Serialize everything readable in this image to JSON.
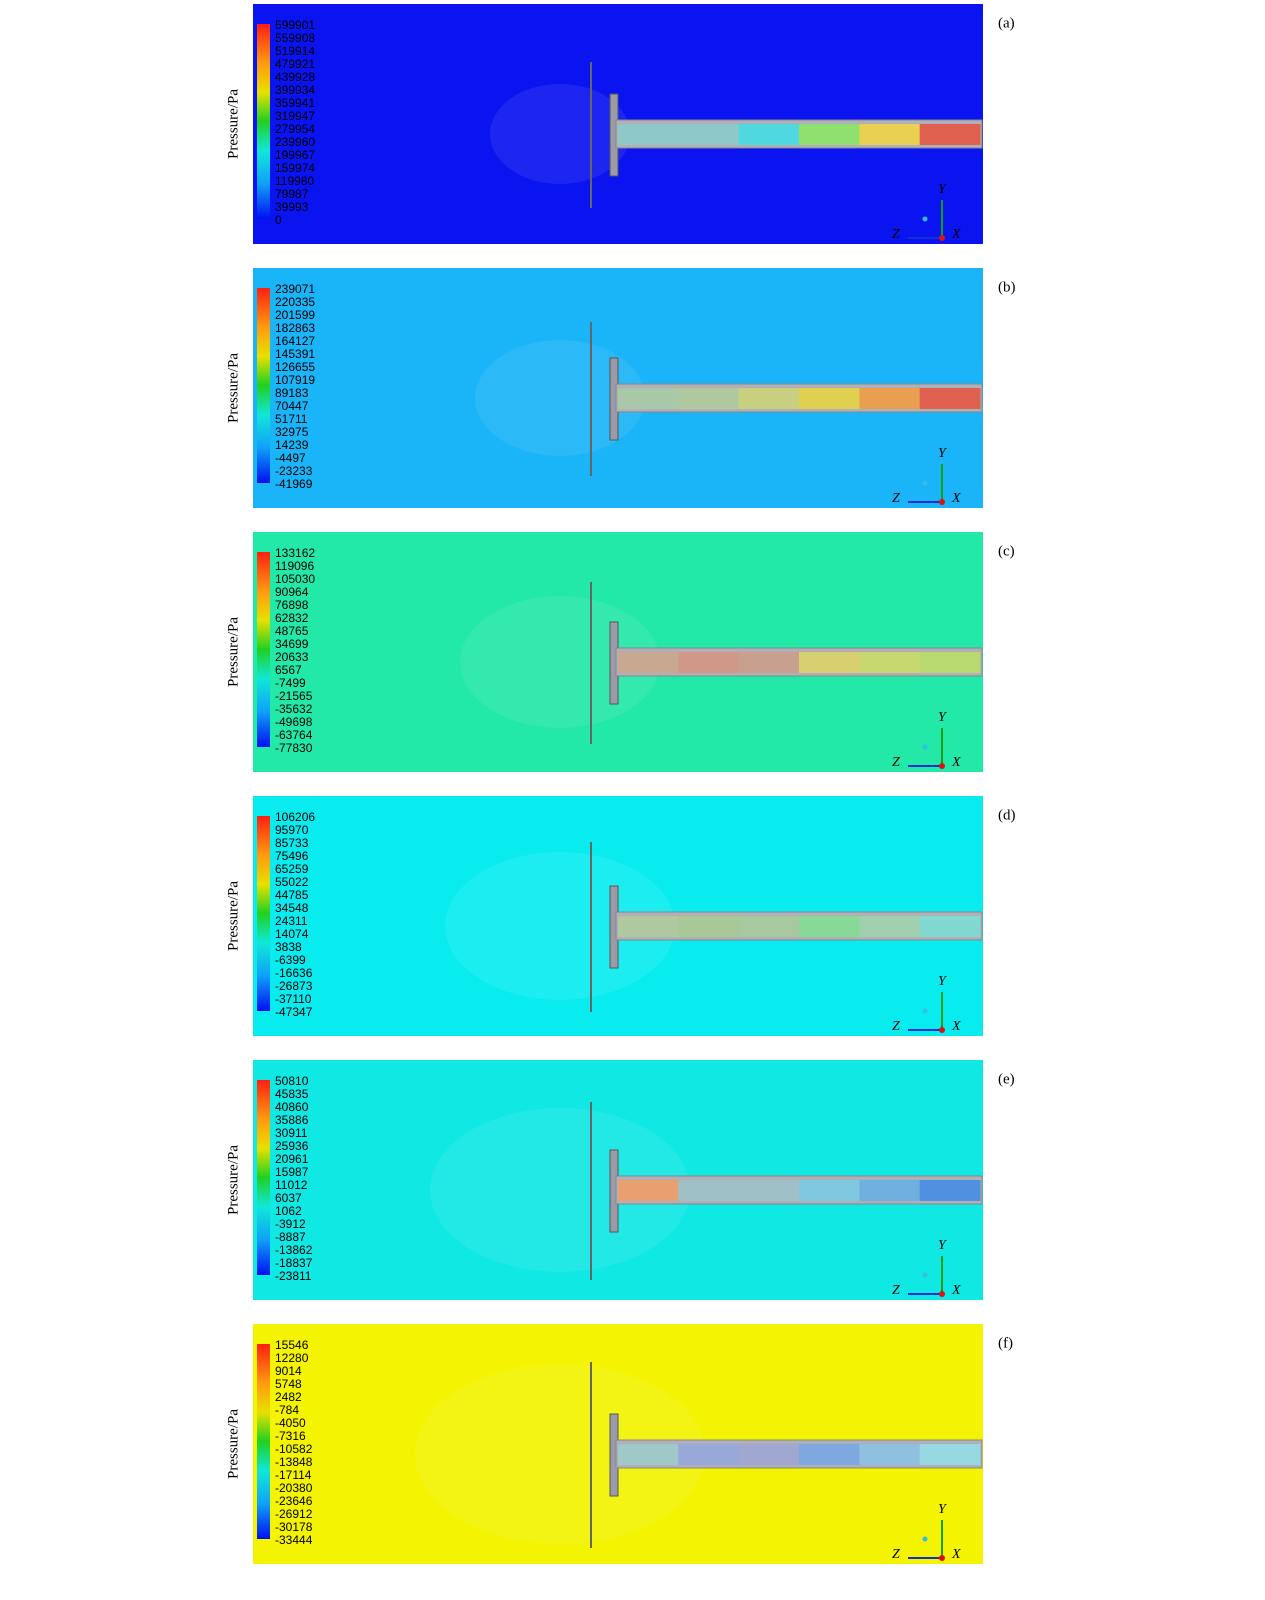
{
  "panels": [
    {
      "label": "(a)",
      "axis_label": "Pressure/Pa",
      "background": "#0a14f0",
      "pipe_colors": [
        "#8ec8c8",
        "#8ec8c8",
        "#50d8e0",
        "#90e070",
        "#e8d050",
        "#e06050"
      ],
      "legend": [
        599901,
        559908,
        519914,
        479921,
        439928,
        399934,
        359941,
        319947,
        279954,
        239960,
        199967,
        159974,
        119980,
        79987,
        39993,
        0
      ],
      "triad": {
        "y": "Y",
        "z": "Z",
        "x": "X"
      }
    },
    {
      "label": "(b)",
      "axis_label": "Pressure/Pa",
      "background": "#1ab4f8",
      "pipe_colors": [
        "#a8c8a8",
        "#b0c8a0",
        "#c8d080",
        "#e0d050",
        "#e8a050",
        "#e06050"
      ],
      "legend": [
        239071,
        220335,
        201599,
        182863,
        164127,
        145391,
        126655,
        107919,
        89183,
        70447,
        51711,
        32975,
        14239,
        -4497,
        -23233,
        -41969
      ],
      "triad": {
        "y": "Y",
        "z": "Z",
        "x": "X"
      }
    },
    {
      "label": "(c)",
      "axis_label": "Pressure/Pa",
      "background": "#22e8a8",
      "pipe_colors": [
        "#c8a890",
        "#d09888",
        "#c8a090",
        "#d8d070",
        "#c8d870",
        "#b8d870"
      ],
      "legend": [
        133162,
        119096,
        105030,
        90964,
        76898,
        62832,
        48765,
        34699,
        20633,
        6567,
        -7499,
        -21565,
        -35632,
        -49698,
        -63764,
        -77830
      ],
      "triad": {
        "y": "Y",
        "z": "Z",
        "x": "X"
      }
    },
    {
      "label": "(d)",
      "axis_label": "Pressure/Pa",
      "background": "#08ecf0",
      "pipe_colors": [
        "#b0c8a0",
        "#a8c898",
        "#a8c8a0",
        "#88d898",
        "#a0d0b0",
        "#80d8d0"
      ],
      "legend": [
        106206,
        95970,
        85733,
        75496,
        65259,
        55022,
        44785,
        34548,
        24311,
        14074,
        3838,
        -6399,
        -16636,
        -26873,
        -37110,
        -47347
      ],
      "triad": {
        "y": "Y",
        "z": "Z",
        "x": "X"
      }
    },
    {
      "label": "(e)",
      "axis_label": "Pressure/Pa",
      "background": "#10e8e4",
      "pipe_colors": [
        "#e8a070",
        "#a0c0c8",
        "#a0c0c8",
        "#80c8e0",
        "#70b0e0",
        "#5090e0"
      ],
      "legend": [
        50810,
        45835,
        40860,
        35886,
        30911,
        25936,
        20961,
        15987,
        11012,
        6037,
        1062,
        -3912,
        -8887,
        -13862,
        -18837,
        -23811
      ],
      "triad": {
        "y": "Y",
        "z": "Z",
        "x": "X"
      }
    },
    {
      "label": "(f)",
      "axis_label": "Pressure/Pa",
      "background": "#f4f400",
      "pipe_colors": [
        "#a0c8c8",
        "#98a8d8",
        "#a0a8d0",
        "#80a8e0",
        "#90c0e0",
        "#98d8e0"
      ],
      "legend": [
        15546,
        12280,
        9014,
        5748,
        2482,
        -784,
        -4050,
        -7316,
        -10582,
        -13848,
        -17114,
        -20380,
        -23646,
        -26912,
        -30178,
        -33444
      ],
      "triad": {
        "y": "Y",
        "z": "Z",
        "x": "X"
      }
    }
  ]
}
